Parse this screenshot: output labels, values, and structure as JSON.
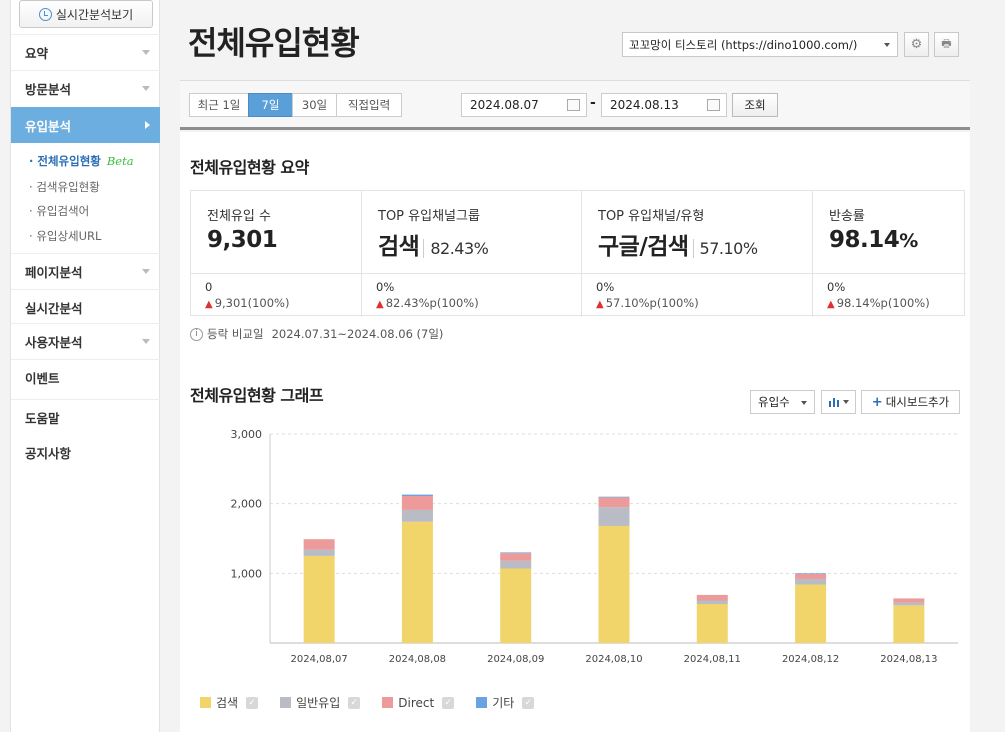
{
  "sidebar": {
    "realtime_button": "실시간분석보기",
    "menu": [
      {
        "label": "요약",
        "arrow": true
      },
      {
        "label": "방문분석",
        "arrow": true
      },
      {
        "label": "유입분석",
        "arrow": true,
        "active": true
      },
      {
        "label": "페이지분석",
        "arrow": true
      },
      {
        "label": "실시간분석",
        "arrow": false
      },
      {
        "label": "사용자분석",
        "arrow": true
      },
      {
        "label": "이벤트",
        "arrow": false
      },
      {
        "label": "도움말",
        "arrow": false
      },
      {
        "label": "공지사항",
        "arrow": false
      }
    ],
    "submenu": [
      {
        "label": "전체유입현황",
        "badge": "Beta",
        "current": true
      },
      {
        "label": "검색유입현황"
      },
      {
        "label": "유입검색어"
      },
      {
        "label": "유입상세URL"
      }
    ]
  },
  "header": {
    "title": "전체유입현황",
    "blog_select": "꼬꼬망이 티스토리 (https://dino1000.com/)",
    "settings_icon": "gear-icon",
    "print_icon": "print-icon"
  },
  "filter": {
    "tabs": [
      "최근 1일",
      "7일",
      "30일",
      "직접입력"
    ],
    "active_tab": "7일",
    "start_date": "2024.08.07",
    "end_date": "2024.08.13",
    "dash": "-",
    "query_button": "조회"
  },
  "summary": {
    "title": "전체유입현황 요약",
    "cards": [
      {
        "label": "전체유입 수",
        "value": "9,301",
        "pct": "",
        "compare": "0",
        "delta": "9,301(100%)"
      },
      {
        "label": "TOP 유입채널그룹",
        "value": "검색",
        "pct": "82.43%",
        "compare": "0%",
        "delta": "82.43%p(100%)"
      },
      {
        "label": "TOP 유입채널/유형",
        "value": "구글/검색",
        "pct": "57.10%",
        "compare": "0%",
        "delta": "57.10%p(100%)"
      },
      {
        "label": "반송률",
        "value": "98.14",
        "unit": "%",
        "pct": "",
        "compare": "0%",
        "delta": "98.14%p(100%)"
      }
    ],
    "compare_label": "등락 비교일",
    "compare_range": "2024.07.31~2024.08.06 (7일)"
  },
  "graph": {
    "title": "전체유입현황 그래프",
    "metric_select": "유입수",
    "dashboard_button": "대시보드추가"
  },
  "colors": {
    "search": "#f1d46a",
    "general": "#b9bcc4",
    "direct": "#ec9a9a",
    "etc": "#6aa3e0",
    "accent": "#5b9fd9"
  },
  "chart_data": {
    "type": "bar",
    "stacked": true,
    "categories": [
      "2024.08.07",
      "2024.08.08",
      "2024.08.09",
      "2024.08.10",
      "2024.08.11",
      "2024.08.12",
      "2024.08.13"
    ],
    "series": [
      {
        "name": "검색",
        "values": [
          1250,
          1740,
          1070,
          1680,
          560,
          840,
          540
        ]
      },
      {
        "name": "일반유입",
        "values": [
          90,
          170,
          110,
          270,
          50,
          80,
          40
        ]
      },
      {
        "name": "Direct",
        "values": [
          150,
          200,
          110,
          140,
          80,
          70,
          60
        ]
      },
      {
        "name": "기타",
        "values": [
          0,
          20,
          10,
          10,
          0,
          10,
          0
        ]
      }
    ],
    "yticks": [
      "1,000",
      "2,000",
      "3,000"
    ],
    "ylim": [
      0,
      3000
    ],
    "grid": true,
    "legend": "bottom-left"
  }
}
